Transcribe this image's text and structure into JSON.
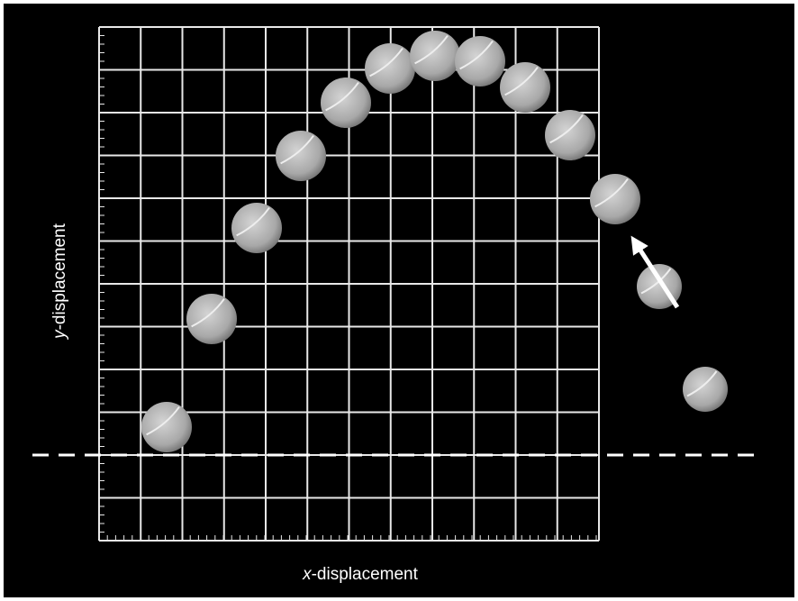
{
  "y_label": {
    "variable": "y",
    "rest": "-displacement"
  },
  "x_label": {
    "variable": "x",
    "rest": "-displacement"
  }
}
